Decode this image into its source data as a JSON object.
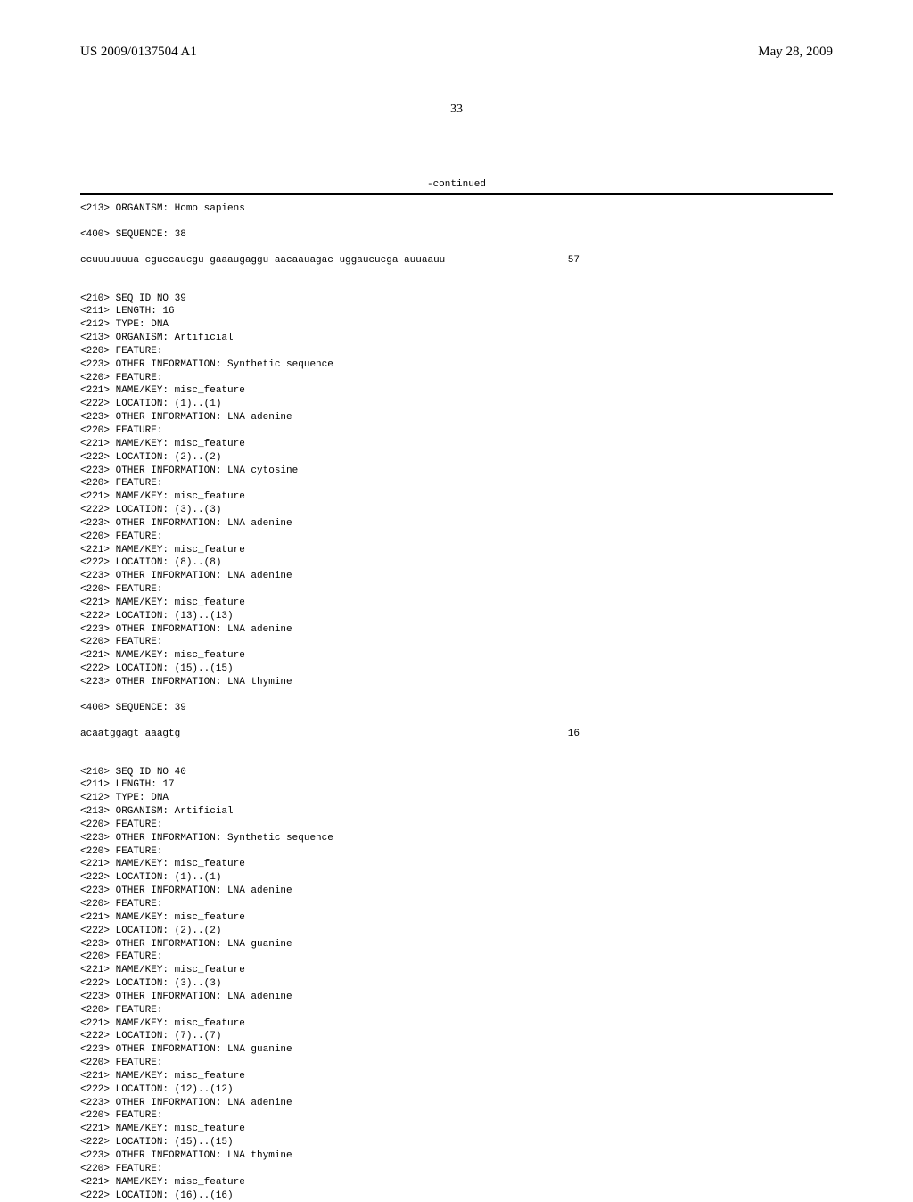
{
  "header": {
    "pub_number": "US 2009/0137504 A1",
    "pub_date": "May 28, 2009",
    "page_number": "33"
  },
  "continued_label": "-continued",
  "lines": [
    "<213> ORGANISM: Homo sapiens",
    "",
    "<400> SEQUENCE: 38",
    "",
    {
      "seq": "ccuuuuuuua cguccaucgu gaaaugaggu aacaauagac uggaucucga auuaauu",
      "num": "57"
    },
    "",
    "",
    "<210> SEQ ID NO 39",
    "<211> LENGTH: 16",
    "<212> TYPE: DNA",
    "<213> ORGANISM: Artificial",
    "<220> FEATURE:",
    "<223> OTHER INFORMATION: Synthetic sequence",
    "<220> FEATURE:",
    "<221> NAME/KEY: misc_feature",
    "<222> LOCATION: (1)..(1)",
    "<223> OTHER INFORMATION: LNA adenine",
    "<220> FEATURE:",
    "<221> NAME/KEY: misc_feature",
    "<222> LOCATION: (2)..(2)",
    "<223> OTHER INFORMATION: LNA cytosine",
    "<220> FEATURE:",
    "<221> NAME/KEY: misc_feature",
    "<222> LOCATION: (3)..(3)",
    "<223> OTHER INFORMATION: LNA adenine",
    "<220> FEATURE:",
    "<221> NAME/KEY: misc_feature",
    "<222> LOCATION: (8)..(8)",
    "<223> OTHER INFORMATION: LNA adenine",
    "<220> FEATURE:",
    "<221> NAME/KEY: misc_feature",
    "<222> LOCATION: (13)..(13)",
    "<223> OTHER INFORMATION: LNA adenine",
    "<220> FEATURE:",
    "<221> NAME/KEY: misc_feature",
    "<222> LOCATION: (15)..(15)",
    "<223> OTHER INFORMATION: LNA thymine",
    "",
    "<400> SEQUENCE: 39",
    "",
    {
      "seq": "acaatggagt aaagtg",
      "num": "16"
    },
    "",
    "",
    "<210> SEQ ID NO 40",
    "<211> LENGTH: 17",
    "<212> TYPE: DNA",
    "<213> ORGANISM: Artificial",
    "<220> FEATURE:",
    "<223> OTHER INFORMATION: Synthetic sequence",
    "<220> FEATURE:",
    "<221> NAME/KEY: misc_feature",
    "<222> LOCATION: (1)..(1)",
    "<223> OTHER INFORMATION: LNA adenine",
    "<220> FEATURE:",
    "<221> NAME/KEY: misc_feature",
    "<222> LOCATION: (2)..(2)",
    "<223> OTHER INFORMATION: LNA guanine",
    "<220> FEATURE:",
    "<221> NAME/KEY: misc_feature",
    "<222> LOCATION: (3)..(3)",
    "<223> OTHER INFORMATION: LNA adenine",
    "<220> FEATURE:",
    "<221> NAME/KEY: misc_feature",
    "<222> LOCATION: (7)..(7)",
    "<223> OTHER INFORMATION: LNA guanine",
    "<220> FEATURE:",
    "<221> NAME/KEY: misc_feature",
    "<222> LOCATION: (12)..(12)",
    "<223> OTHER INFORMATION: LNA adenine",
    "<220> FEATURE:",
    "<221> NAME/KEY: misc_feature",
    "<222> LOCATION: (15)..(15)",
    "<223> OTHER INFORMATION: LNA thymine",
    "<220> FEATURE:",
    "<221> NAME/KEY: misc_feature",
    "<222> LOCATION: (16)..(16)"
  ]
}
